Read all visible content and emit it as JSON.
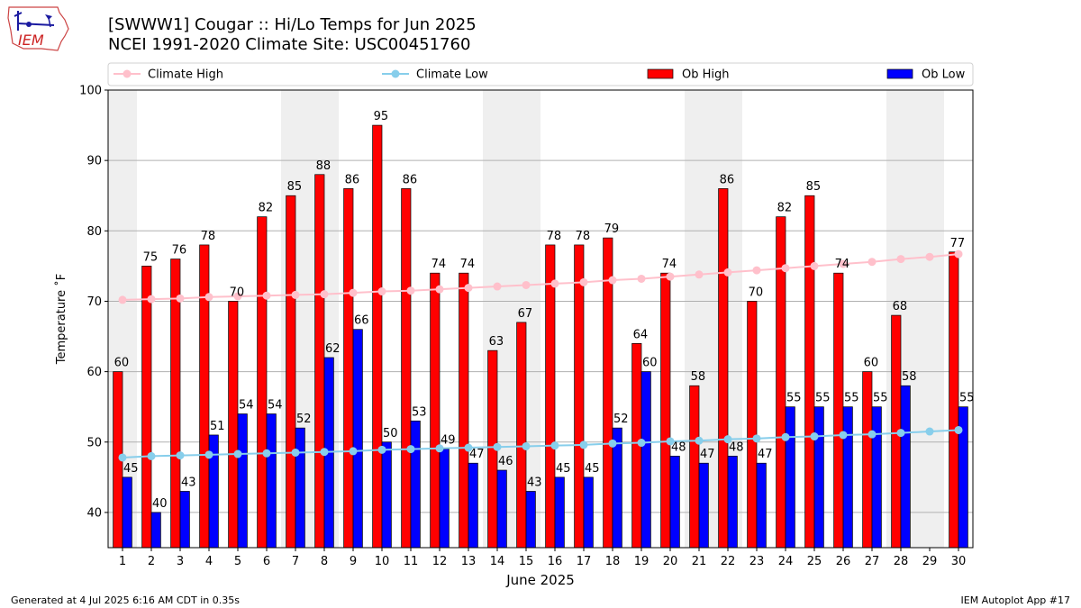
{
  "title_line1": "[SWWW1] Cougar :: Hi/Lo Temps for Jun 2025",
  "title_line2": "NCEI 1991-2020 Climate Site: USC00451760",
  "logo_text": "IEM",
  "footer_left": "Generated at 4 Jul 2025 6:16 AM CDT in 0.35s",
  "footer_right": "IEM Autoplot App #17",
  "colors": {
    "ob_high": "#ff0000",
    "ob_low": "#0000ff",
    "climate_high": "#ffc0cb",
    "climate_low": "#87ceeb",
    "weekend_band": "#efefef"
  },
  "chart_data": {
    "type": "bar",
    "xlabel": "June 2025",
    "ylabel": "Temperature ˚F",
    "ylim": [
      35,
      100
    ],
    "yticks": [
      40,
      50,
      60,
      70,
      80,
      90,
      100
    ],
    "grid": true,
    "legend": [
      "Climate High",
      "Climate Low",
      "Ob High",
      "Ob Low"
    ],
    "legend_placement": "top",
    "categories": [
      "1",
      "2",
      "3",
      "4",
      "5",
      "6",
      "7",
      "8",
      "9",
      "10",
      "11",
      "12",
      "13",
      "14",
      "15",
      "16",
      "17",
      "18",
      "19",
      "20",
      "21",
      "22",
      "23",
      "24",
      "25",
      "26",
      "27",
      "28",
      "29",
      "30"
    ],
    "weekend_days": [
      1,
      7,
      8,
      14,
      15,
      21,
      22,
      28,
      29
    ],
    "series": [
      {
        "name": "Ob High",
        "kind": "bar",
        "values": [
          60,
          75,
          76,
          78,
          70,
          82,
          85,
          88,
          86,
          95,
          86,
          74,
          74,
          63,
          67,
          78,
          78,
          79,
          64,
          74,
          58,
          86,
          70,
          82,
          85,
          74,
          60,
          68,
          null,
          77
        ]
      },
      {
        "name": "Ob Low",
        "kind": "bar",
        "values": [
          45,
          40,
          43,
          51,
          54,
          54,
          52,
          62,
          66,
          50,
          53,
          49,
          47,
          46,
          43,
          45,
          45,
          52,
          60,
          48,
          47,
          48,
          47,
          55,
          55,
          55,
          55,
          58,
          null,
          55
        ]
      },
      {
        "name": "Climate High",
        "kind": "line",
        "values": [
          70.2,
          70.3,
          70.4,
          70.6,
          70.7,
          70.8,
          70.9,
          71.0,
          71.2,
          71.4,
          71.5,
          71.7,
          71.9,
          72.1,
          72.3,
          72.5,
          72.7,
          73.0,
          73.2,
          73.5,
          73.8,
          74.1,
          74.4,
          74.7,
          75.0,
          75.3,
          75.6,
          76.0,
          76.3,
          76.7
        ]
      },
      {
        "name": "Climate Low",
        "kind": "line",
        "values": [
          47.8,
          48.0,
          48.1,
          48.2,
          48.3,
          48.4,
          48.5,
          48.6,
          48.7,
          48.9,
          49.0,
          49.1,
          49.2,
          49.3,
          49.4,
          49.5,
          49.6,
          49.8,
          49.9,
          50.1,
          50.2,
          50.4,
          50.5,
          50.7,
          50.8,
          51.0,
          51.1,
          51.3,
          51.5,
          51.7
        ]
      }
    ]
  }
}
